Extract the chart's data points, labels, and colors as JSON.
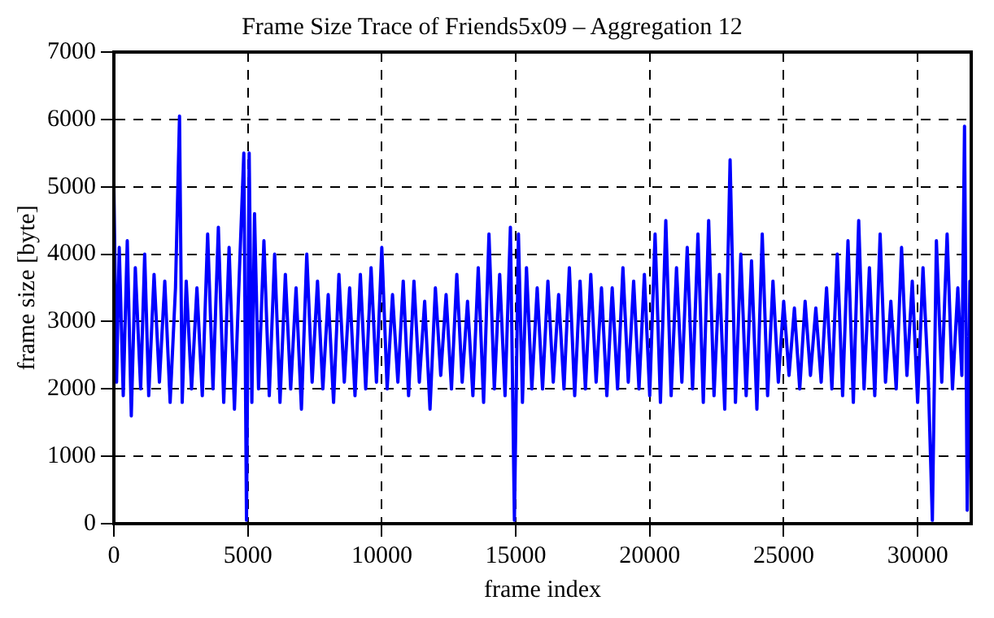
{
  "chart_data": {
    "type": "line",
    "title": "Frame Size Trace of Friends5x09 – Aggregation 12",
    "xlabel": "frame index",
    "ylabel": "frame size [byte]",
    "xlim": [
      0,
      32000
    ],
    "ylim": [
      0,
      7000
    ],
    "xticks": [
      0,
      5000,
      10000,
      15000,
      20000,
      25000,
      30000
    ],
    "yticks": [
      0,
      1000,
      2000,
      3000,
      4000,
      5000,
      6000,
      7000
    ],
    "grid": true,
    "legend": false,
    "series": [
      {
        "color": "#0000ff",
        "x": [
          0,
          100,
          200,
          350,
          500,
          650,
          800,
          1000,
          1150,
          1300,
          1500,
          1700,
          1900,
          2100,
          2300,
          2450,
          2550,
          2700,
          2900,
          3100,
          3300,
          3500,
          3700,
          3900,
          4100,
          4300,
          4500,
          4700,
          4850,
          4950,
          5050,
          5150,
          5250,
          5400,
          5600,
          5800,
          6000,
          6200,
          6400,
          6600,
          6800,
          7000,
          7200,
          7400,
          7600,
          7800,
          8000,
          8200,
          8400,
          8600,
          8800,
          9000,
          9200,
          9400,
          9600,
          9800,
          10000,
          10200,
          10400,
          10600,
          10800,
          11000,
          11200,
          11400,
          11600,
          11800,
          12000,
          12200,
          12400,
          12600,
          12800,
          13000,
          13200,
          13400,
          13600,
          13800,
          14000,
          14200,
          14400,
          14600,
          14800,
          14950,
          15100,
          15250,
          15400,
          15600,
          15800,
          16000,
          16200,
          16400,
          16600,
          16800,
          17000,
          17200,
          17400,
          17600,
          17800,
          18000,
          18200,
          18400,
          18600,
          18800,
          19000,
          19200,
          19400,
          19600,
          19800,
          20000,
          20200,
          20400,
          20600,
          20800,
          21000,
          21200,
          21400,
          21600,
          21800,
          22000,
          22200,
          22400,
          22600,
          22800,
          23000,
          23200,
          23400,
          23600,
          23800,
          24000,
          24200,
          24400,
          24600,
          24800,
          25000,
          25200,
          25400,
          25600,
          25800,
          26000,
          26200,
          26400,
          26600,
          26800,
          27000,
          27200,
          27400,
          27600,
          27800,
          28000,
          28200,
          28400,
          28600,
          28800,
          29000,
          29200,
          29400,
          29600,
          29800,
          30000,
          30200,
          30400,
          30550,
          30700,
          30900,
          31100,
          31300,
          31500,
          31650,
          31750,
          31850,
          31950,
          32000
        ],
        "values": [
          5000,
          2100,
          4100,
          1900,
          4200,
          1600,
          3800,
          2000,
          4000,
          1900,
          3700,
          2100,
          3600,
          1800,
          3500,
          6050,
          1800,
          3600,
          2000,
          3500,
          1900,
          4300,
          2000,
          4400,
          1800,
          4100,
          1700,
          3900,
          5500,
          50,
          5500,
          1800,
          4600,
          2000,
          4200,
          1900,
          4000,
          1800,
          3700,
          2000,
          3500,
          1700,
          4000,
          2100,
          3600,
          2000,
          3400,
          1800,
          3700,
          2100,
          3500,
          1900,
          3700,
          2000,
          3800,
          2100,
          4100,
          2000,
          3400,
          2100,
          3600,
          1900,
          3600,
          2100,
          3300,
          1700,
          3500,
          2200,
          3400,
          2000,
          3700,
          2100,
          3300,
          1900,
          3800,
          1800,
          4300,
          2000,
          3700,
          1900,
          4400,
          50,
          4300,
          1800,
          3800,
          2000,
          3500,
          2000,
          3600,
          2100,
          3400,
          2000,
          3800,
          1900,
          3600,
          2000,
          3700,
          2100,
          3500,
          1900,
          3500,
          2000,
          3800,
          2100,
          3600,
          2000,
          3700,
          1900,
          4300,
          1800,
          4500,
          1900,
          3800,
          2100,
          4100,
          2000,
          4300,
          1800,
          4500,
          1900,
          3700,
          1700,
          5400,
          1800,
          4000,
          1900,
          3900,
          1700,
          4300,
          1900,
          3600,
          2100,
          3300,
          2200,
          3200,
          2000,
          3300,
          2200,
          3200,
          2100,
          3500,
          2000,
          4000,
          1900,
          4200,
          1800,
          4500,
          2000,
          3800,
          1900,
          4300,
          2100,
          3300,
          2000,
          4100,
          2200,
          3600,
          1800,
          3800,
          2100,
          50,
          4200,
          2100,
          4300,
          2000,
          3500,
          2200,
          5900,
          200,
          3600,
          200
        ]
      }
    ]
  }
}
